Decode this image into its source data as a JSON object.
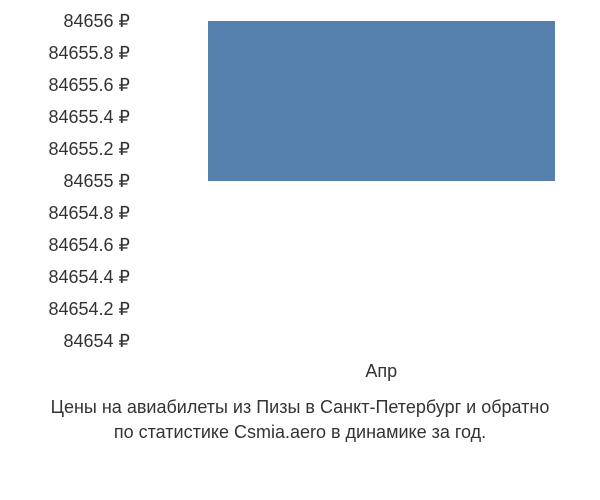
{
  "chart": {
    "type": "bar",
    "y_axis": {
      "min": 84654,
      "max": 84656,
      "tick_step": 0.2,
      "labels": [
        "84656 ₽",
        "84655.8 ₽",
        "84655.6 ₽",
        "84655.4 ₽",
        "84655.2 ₽",
        "84655 ₽",
        "84654.8 ₽",
        "84654.6 ₽",
        "84654.4 ₽",
        "84654.2 ₽",
        "84654 ₽"
      ]
    },
    "x_axis": {
      "labels": [
        "Апр"
      ]
    },
    "bars": [
      {
        "category": "Апр",
        "value": 84656,
        "baseline": 84655,
        "color": "#5580ad",
        "left_pct": 14,
        "width_pct": 77
      }
    ],
    "background_color": "#ffffff",
    "text_color": "#333333",
    "font_size": 18
  },
  "caption": {
    "line1": "Цены на авиабилеты из Пизы в Санкт-Петербург и обратно",
    "line2": "по статистике Csmia.aero в динамике за год."
  }
}
